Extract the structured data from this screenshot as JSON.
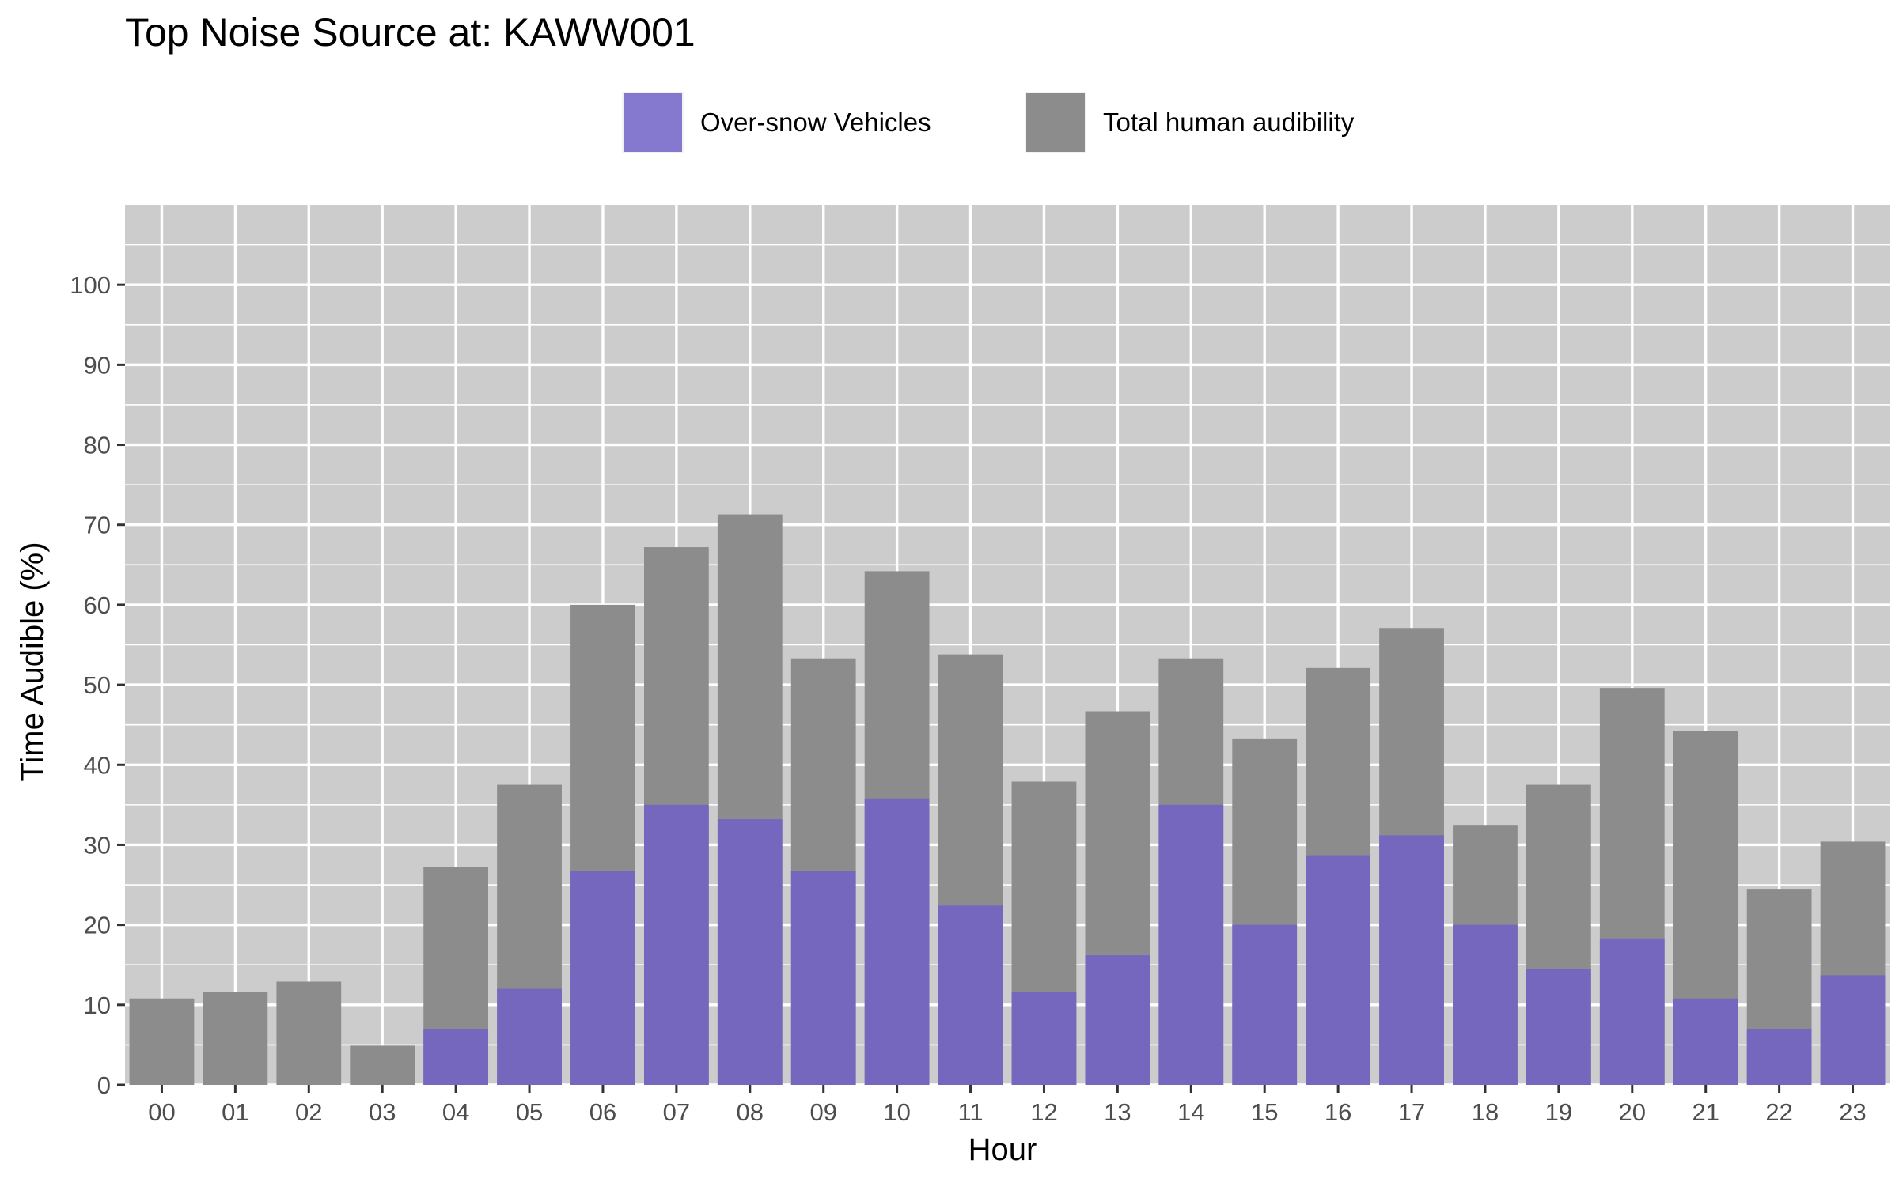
{
  "chart_data": {
    "type": "bar",
    "title": "Top Noise Source at: KAWW001",
    "xlabel": "Hour",
    "ylabel": "Time Audible (%)",
    "ylim": [
      0,
      110
    ],
    "yticks": [
      0,
      10,
      20,
      30,
      40,
      50,
      60,
      70,
      80,
      90,
      100
    ],
    "grid": true,
    "legend_position": "top",
    "categories": [
      "00",
      "01",
      "02",
      "03",
      "04",
      "05",
      "06",
      "07",
      "08",
      "09",
      "10",
      "11",
      "12",
      "13",
      "14",
      "15",
      "16",
      "17",
      "18",
      "19",
      "20",
      "21",
      "22",
      "23"
    ],
    "series": [
      {
        "name": "Over-snow Vehicles",
        "color": "#7467bd",
        "legend_color": "#8579cf",
        "values": [
          0,
          0,
          0,
          0,
          7,
          12,
          26.7,
          35,
          33.2,
          26.7,
          35.8,
          22.4,
          11.6,
          16.2,
          35,
          20,
          28.7,
          31.2,
          20,
          14.5,
          18.3,
          10.8,
          7,
          13.7
        ]
      },
      {
        "name": "Total human audibility",
        "color": "#8c8c8c",
        "legend_color": "#8c8c8c",
        "values": [
          10.8,
          11.6,
          12.9,
          4.9,
          27.2,
          37.5,
          60,
          67.2,
          71.3,
          53.3,
          64.2,
          53.8,
          37.9,
          46.7,
          53.3,
          43.3,
          52.1,
          57.1,
          32.4,
          37.5,
          49.6,
          44.2,
          24.5,
          30.4
        ]
      }
    ],
    "panel_color": "#cccccc",
    "grid_color": "#ffffff"
  }
}
